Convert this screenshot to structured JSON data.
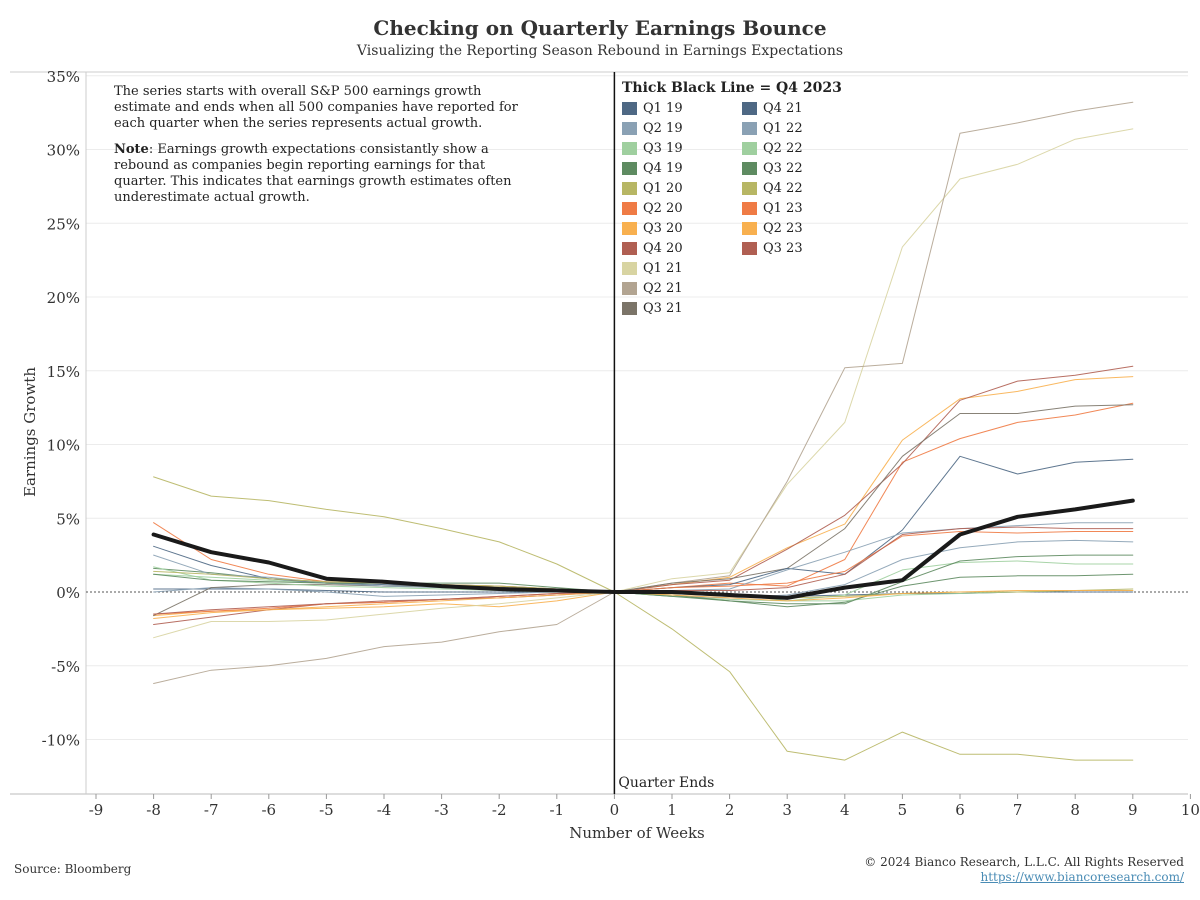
{
  "header": {
    "title": "Checking on Quarterly Earnings Bounce",
    "subtitle": "Visualizing the Reporting Season Rebound in Earnings Expectations"
  },
  "note": {
    "paragraph1": "The series starts with overall S&P 500 earnings growth estimate and ends when all 500 companies have reported for each quarter when the series represents actual growth.",
    "note_label": "Note",
    "paragraph2": ": Earnings growth expectations consistantly show a rebound as companies begin reporting earnings for that quarter. This indicates that earnings growth estimates often underestimate actual growth."
  },
  "legend": {
    "title": "Thick Black Line = Q4 2023",
    "col1": [
      {
        "label": "Q1 19",
        "color": "#4e6884"
      },
      {
        "label": "Q2 19",
        "color": "#8aa1b4"
      },
      {
        "label": "Q3 19",
        "color": "#9fcf9f"
      },
      {
        "label": "Q4 19",
        "color": "#5e8b61"
      },
      {
        "label": "Q1 20",
        "color": "#b7b664"
      },
      {
        "label": "Q2 20",
        "color": "#ef7b45"
      },
      {
        "label": "Q3 20",
        "color": "#f8b04f"
      },
      {
        "label": "Q4 20",
        "color": "#b05f52"
      },
      {
        "label": "Q1 21",
        "color": "#d8d4a2"
      },
      {
        "label": "Q2 21",
        "color": "#b2a491"
      },
      {
        "label": "Q3 21",
        "color": "#7b7468"
      }
    ],
    "col2": [
      {
        "label": "Q4 21",
        "color": "#4e6884"
      },
      {
        "label": "Q1 22",
        "color": "#8aa1b4"
      },
      {
        "label": "Q2 22",
        "color": "#9fcf9f"
      },
      {
        "label": "Q3 22",
        "color": "#5e8b61"
      },
      {
        "label": "Q4 22",
        "color": "#b7b664"
      },
      {
        "label": "Q1 23",
        "color": "#ef7b45"
      },
      {
        "label": "Q2 23",
        "color": "#f8b04f"
      },
      {
        "label": "Q3 23",
        "color": "#b05f52"
      }
    ]
  },
  "footer": {
    "source": "Source: Bloomberg",
    "copyright": "© 2024 Bianco Research, L.L.C. All Rights Reserved",
    "link": "https://www.biancoresearch.com/"
  },
  "chart_data": {
    "type": "line",
    "xlabel": "Number of Weeks",
    "ylabel": "Earnings Growth",
    "zero_label": "Quarter Ends",
    "xlim": [
      -9,
      10
    ],
    "ylim": [
      -13,
      35
    ],
    "x_ticks": [
      "-9",
      "-8",
      "-7",
      "-6",
      "-5",
      "-4",
      "-3",
      "-2",
      "-1",
      "0",
      "1",
      "2",
      "3",
      "4",
      "5",
      "6",
      "7",
      "8",
      "9",
      "10"
    ],
    "y_ticks": [
      {
        "value": 35,
        "label": "35%"
      },
      {
        "value": 30,
        "label": "30%"
      },
      {
        "value": 25,
        "label": "25%"
      },
      {
        "value": 20,
        "label": "20%"
      },
      {
        "value": 15,
        "label": "15%"
      },
      {
        "value": 10,
        "label": "10%"
      },
      {
        "value": 5,
        "label": "5%"
      },
      {
        "value": 0,
        "label": "0%"
      },
      {
        "value": -5,
        "label": "-5%"
      },
      {
        "value": -10,
        "label": "-10%"
      }
    ],
    "x": [
      -8,
      -7,
      -6,
      -5,
      -4,
      -3,
      -2,
      -1,
      0,
      1,
      2,
      3,
      4,
      5,
      6,
      7,
      8,
      9
    ],
    "grid": true,
    "legend_position": "top-center",
    "series": [
      {
        "name": "Q1 19",
        "color": "#4e6884",
        "width": 1,
        "values": [
          0.2,
          0.2,
          0.2,
          0.1,
          0.0,
          0.0,
          0.0,
          0.0,
          0,
          -0.1,
          -0.2,
          -0.3,
          -0.2,
          -0.1,
          -0.1,
          0.0,
          0.0,
          0.0
        ]
      },
      {
        "name": "Q2 19",
        "color": "#8aa1b4",
        "width": 1,
        "values": [
          0.0,
          0.3,
          0.2,
          0.0,
          -0.3,
          -0.2,
          -0.1,
          0.0,
          0,
          -0.3,
          -0.4,
          -0.2,
          0.5,
          2.2,
          3.0,
          3.4,
          3.5,
          3.4
        ]
      },
      {
        "name": "Q3 19",
        "color": "#9fcf9f",
        "width": 1,
        "values": [
          1.2,
          1.0,
          0.8,
          0.6,
          0.4,
          0.3,
          0.2,
          0.1,
          0,
          -0.3,
          -0.5,
          -0.6,
          -0.2,
          1.5,
          2.0,
          2.1,
          1.9,
          1.9
        ]
      },
      {
        "name": "Q4 19",
        "color": "#5e8b61",
        "width": 1,
        "values": [
          1.6,
          1.3,
          0.9,
          0.7,
          0.6,
          0.5,
          0.4,
          0.2,
          0,
          -0.3,
          -0.6,
          -1.0,
          -0.7,
          0.4,
          1.0,
          1.1,
          1.1,
          1.2
        ]
      },
      {
        "name": "Q1 20",
        "color": "#b7b664",
        "width": 1,
        "values": [
          7.8,
          6.5,
          6.2,
          5.6,
          5.1,
          4.3,
          3.4,
          1.9,
          0,
          -2.5,
          -5.4,
          -10.8,
          -11.4,
          -9.5,
          -11.0,
          -11.0,
          -11.4,
          -11.4
        ]
      },
      {
        "name": "Q2 20",
        "color": "#ef7b45",
        "width": 1,
        "values": [
          4.7,
          2.2,
          1.2,
          0.7,
          0.6,
          0.5,
          0.4,
          0.2,
          0,
          0.3,
          0.6,
          0.4,
          2.2,
          8.8,
          10.4,
          11.5,
          12.0,
          12.8
        ]
      },
      {
        "name": "Q3 20",
        "color": "#f8b04f",
        "width": 1,
        "values": [
          -1.6,
          -1.3,
          -1.2,
          -1.1,
          -1.0,
          -0.8,
          -1.0,
          -0.6,
          0,
          0.5,
          1.0,
          3.0,
          4.6,
          10.3,
          13.1,
          13.6,
          14.4,
          14.6
        ]
      },
      {
        "name": "Q4 20",
        "color": "#b05f52",
        "width": 1,
        "values": [
          -2.2,
          -1.7,
          -1.2,
          -0.8,
          -0.7,
          -0.5,
          -0.4,
          -0.2,
          0,
          0.5,
          0.8,
          2.9,
          5.2,
          8.7,
          13.0,
          14.3,
          14.7,
          15.3
        ]
      },
      {
        "name": "Q1 21",
        "color": "#d8d4a2",
        "width": 1,
        "values": [
          -3.1,
          -2.0,
          -2.0,
          -1.9,
          -1.5,
          -1.1,
          -0.8,
          -0.4,
          0,
          0.9,
          1.3,
          7.3,
          11.5,
          23.4,
          28.0,
          29.0,
          30.7,
          31.4
        ]
      },
      {
        "name": "Q2 21",
        "color": "#b2a491",
        "width": 1,
        "values": [
          -6.2,
          -5.3,
          -5.0,
          -4.5,
          -3.7,
          -3.4,
          -2.7,
          -2.2,
          0,
          0.6,
          1.1,
          7.5,
          15.2,
          15.5,
          31.1,
          31.8,
          32.6,
          33.2
        ]
      },
      {
        "name": "Q3 21",
        "color": "#7b7468",
        "width": 1,
        "values": [
          -1.6,
          0.3,
          0.5,
          0.5,
          0.4,
          0.4,
          0.3,
          0.2,
          0,
          0.6,
          0.9,
          1.6,
          4.3,
          9.2,
          12.1,
          12.1,
          12.6,
          12.7
        ]
      },
      {
        "name": "Q4 21",
        "color": "#4e6884",
        "width": 1,
        "values": [
          3.1,
          1.8,
          0.9,
          0.6,
          0.5,
          0.4,
          0.3,
          0.1,
          0,
          0.3,
          0.5,
          1.6,
          1.2,
          4.2,
          9.2,
          8.0,
          8.8,
          9.0
        ]
      },
      {
        "name": "Q1 22",
        "color": "#8aa1b4",
        "width": 1,
        "values": [
          2.5,
          1.2,
          1.0,
          0.6,
          0.4,
          0.3,
          0.1,
          0.0,
          0,
          0.1,
          0.2,
          1.5,
          2.7,
          4.0,
          4.3,
          4.5,
          4.7,
          4.7
        ]
      },
      {
        "name": "Q2 22",
        "color": "#9fcf9f",
        "width": 1,
        "values": [
          1.7,
          0.8,
          0.6,
          0.4,
          0.3,
          0.2,
          0.1,
          0.0,
          0,
          0.0,
          -0.1,
          -0.6,
          -0.6,
          -0.2,
          -0.1,
          0.0,
          0.1,
          0.1
        ]
      },
      {
        "name": "Q3 22",
        "color": "#5e8b61",
        "width": 1,
        "values": [
          1.2,
          0.8,
          0.7,
          0.6,
          0.6,
          0.6,
          0.6,
          0.3,
          0,
          -0.2,
          -0.6,
          -0.8,
          -0.8,
          0.7,
          2.1,
          2.4,
          2.5,
          2.5
        ]
      },
      {
        "name": "Q4 22",
        "color": "#b7b664",
        "width": 1,
        "values": [
          1.4,
          1.2,
          0.9,
          0.7,
          0.6,
          0.5,
          0.4,
          0.2,
          0,
          -0.1,
          -0.3,
          -0.4,
          -0.3,
          -0.1,
          0.0,
          0.0,
          0.1,
          0.2
        ]
      },
      {
        "name": "Q1 23",
        "color": "#ef7b45",
        "width": 1,
        "values": [
          -1.5,
          -1.3,
          -1.1,
          -0.8,
          -0.7,
          -0.5,
          -0.3,
          -0.1,
          0,
          0.3,
          0.4,
          0.6,
          1.4,
          3.8,
          4.1,
          4.0,
          4.1,
          4.1
        ]
      },
      {
        "name": "Q2 23",
        "color": "#f8b04f",
        "width": 1,
        "values": [
          -1.8,
          -1.4,
          -1.2,
          -1.0,
          -0.8,
          -0.6,
          -0.4,
          -0.2,
          0,
          -0.2,
          -0.4,
          -0.6,
          -0.4,
          -0.1,
          0.0,
          0.1,
          0.1,
          0.1
        ]
      },
      {
        "name": "Q3 23",
        "color": "#b05f52",
        "width": 1,
        "values": [
          -1.5,
          -1.2,
          -1.0,
          -0.8,
          -0.6,
          -0.5,
          -0.3,
          -0.1,
          0,
          0.1,
          0.1,
          0.3,
          1.2,
          3.9,
          4.3,
          4.4,
          4.3,
          4.3
        ]
      },
      {
        "name": "Q4 23",
        "color": "#1a1a1a",
        "width": 4,
        "values": [
          3.9,
          2.7,
          2.0,
          0.9,
          0.7,
          0.4,
          0.2,
          0.1,
          0,
          0.0,
          -0.2,
          -0.4,
          0.3,
          0.8,
          3.9,
          5.1,
          5.6,
          6.2
        ]
      }
    ]
  }
}
